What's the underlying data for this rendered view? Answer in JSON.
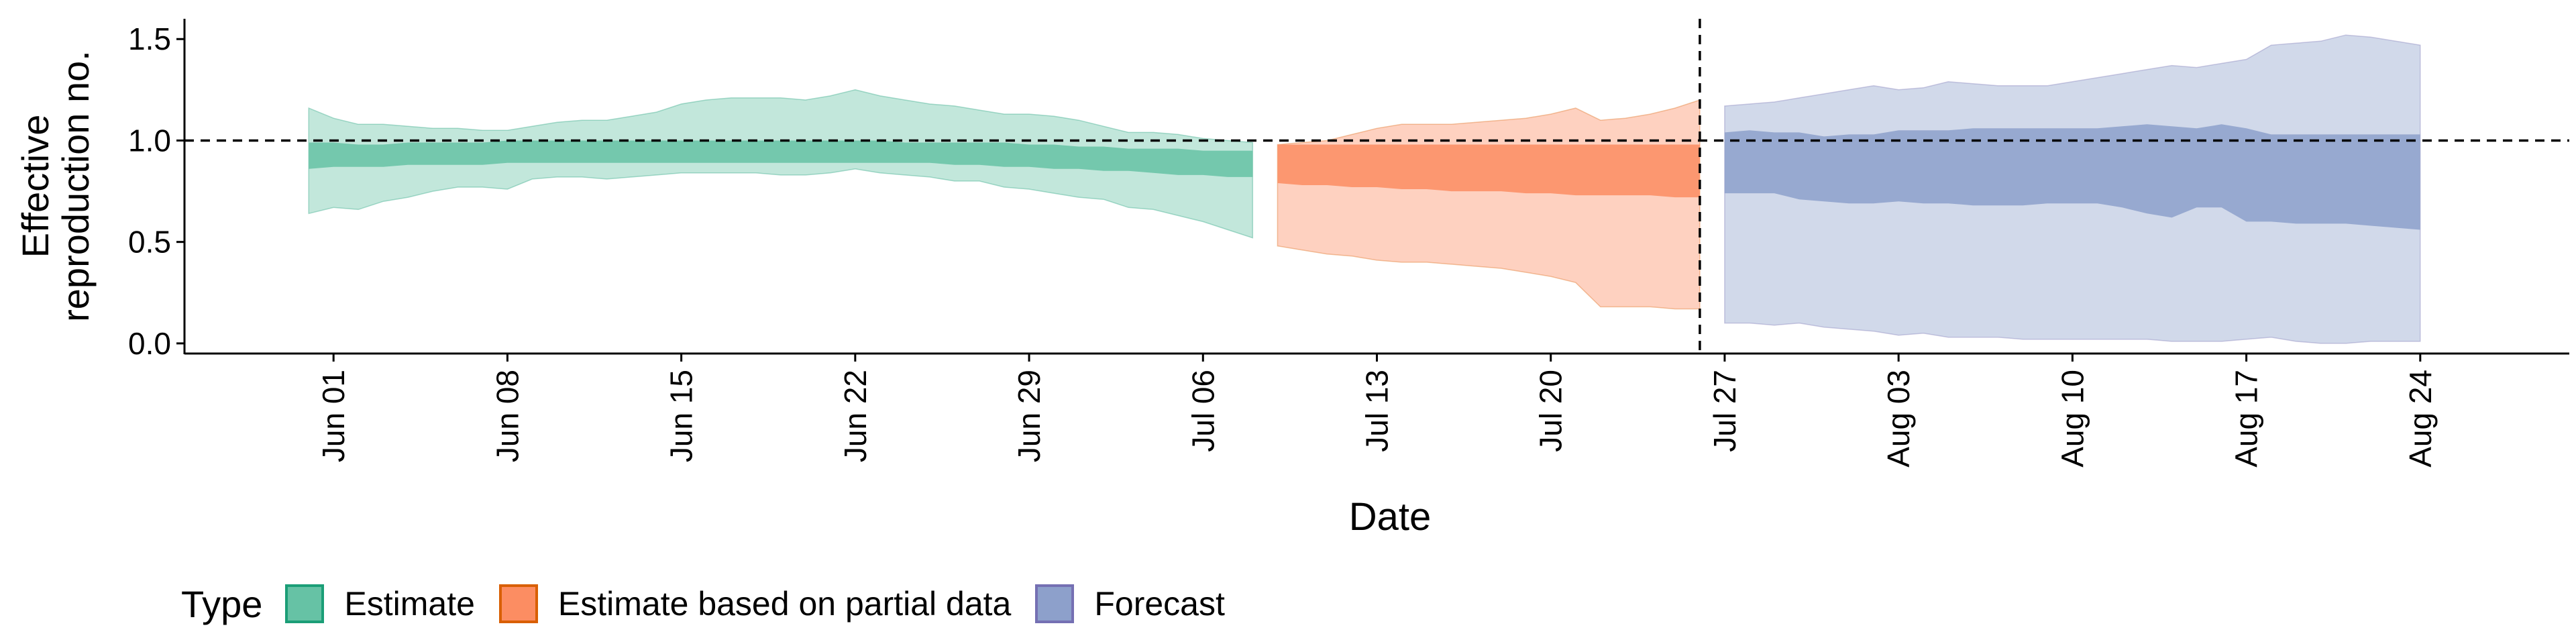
{
  "chart_data": {
    "type": "area",
    "xlabel": "Date",
    "ylabel_lines": [
      "Effective",
      "reproduction no."
    ],
    "ylim": [
      -0.05,
      1.6
    ],
    "xlim": [
      "2020-05-26",
      "2020-08-30"
    ],
    "y_ticks": [
      {
        "value": 0.0,
        "label": "0.0"
      },
      {
        "value": 0.5,
        "label": "0.5"
      },
      {
        "value": 1.0,
        "label": "1.0"
      },
      {
        "value": 1.5,
        "label": "1.5"
      }
    ],
    "x_ticks": [
      {
        "date": "2020-06-01",
        "label": "Jun 01"
      },
      {
        "date": "2020-06-08",
        "label": "Jun 08"
      },
      {
        "date": "2020-06-15",
        "label": "Jun 15"
      },
      {
        "date": "2020-06-22",
        "label": "Jun 22"
      },
      {
        "date": "2020-06-29",
        "label": "Jun 29"
      },
      {
        "date": "2020-07-06",
        "label": "Jul 06"
      },
      {
        "date": "2020-07-13",
        "label": "Jul 13"
      },
      {
        "date": "2020-07-20",
        "label": "Jul 20"
      },
      {
        "date": "2020-07-27",
        "label": "Jul 27"
      },
      {
        "date": "2020-08-03",
        "label": "Aug 03"
      },
      {
        "date": "2020-08-10",
        "label": "Aug 10"
      },
      {
        "date": "2020-08-17",
        "label": "Aug 17"
      },
      {
        "date": "2020-08-24",
        "label": "Aug 24"
      }
    ],
    "hline": 1.0,
    "vline": "2020-07-26",
    "legend": {
      "title": "Type",
      "position": "bottom-left"
    },
    "series": [
      {
        "name": "Estimate",
        "fill_color": "#66c2a5",
        "line_color": "#1b9e77",
        "x": [
          "2020-05-31",
          "2020-06-01",
          "2020-06-02",
          "2020-06-03",
          "2020-06-04",
          "2020-06-05",
          "2020-06-06",
          "2020-06-07",
          "2020-06-08",
          "2020-06-09",
          "2020-06-10",
          "2020-06-11",
          "2020-06-12",
          "2020-06-13",
          "2020-06-14",
          "2020-06-15",
          "2020-06-16",
          "2020-06-17",
          "2020-06-18",
          "2020-06-19",
          "2020-06-20",
          "2020-06-21",
          "2020-06-22",
          "2020-06-23",
          "2020-06-24",
          "2020-06-25",
          "2020-06-26",
          "2020-06-27",
          "2020-06-28",
          "2020-06-29",
          "2020-06-30",
          "2020-07-01",
          "2020-07-02",
          "2020-07-03",
          "2020-07-04",
          "2020-07-05",
          "2020-07-06",
          "2020-07-07",
          "2020-07-08"
        ],
        "lower90": [
          0.64,
          0.67,
          0.66,
          0.7,
          0.72,
          0.75,
          0.77,
          0.77,
          0.76,
          0.81,
          0.82,
          0.82,
          0.81,
          0.82,
          0.83,
          0.84,
          0.84,
          0.84,
          0.84,
          0.83,
          0.83,
          0.84,
          0.86,
          0.84,
          0.83,
          0.82,
          0.8,
          0.8,
          0.77,
          0.76,
          0.74,
          0.72,
          0.71,
          0.67,
          0.66,
          0.63,
          0.6,
          0.56,
          0.52
        ],
        "lower50": [
          0.86,
          0.87,
          0.87,
          0.87,
          0.88,
          0.88,
          0.88,
          0.88,
          0.89,
          0.89,
          0.89,
          0.89,
          0.89,
          0.89,
          0.89,
          0.89,
          0.89,
          0.89,
          0.89,
          0.89,
          0.89,
          0.89,
          0.89,
          0.89,
          0.89,
          0.89,
          0.88,
          0.88,
          0.87,
          0.87,
          0.86,
          0.86,
          0.85,
          0.85,
          0.84,
          0.83,
          0.83,
          0.82,
          0.82
        ],
        "upper50": [
          0.99,
          0.99,
          0.98,
          0.98,
          0.99,
          0.99,
          0.99,
          0.99,
          1.0,
          1.0,
          1.0,
          1.0,
          1.0,
          1.0,
          1.0,
          1.0,
          1.0,
          1.0,
          1.0,
          1.0,
          1.0,
          1.0,
          1.0,
          1.0,
          0.99,
          0.99,
          0.99,
          0.99,
          0.99,
          0.98,
          0.98,
          0.97,
          0.97,
          0.96,
          0.96,
          0.96,
          0.95,
          0.95,
          0.95
        ],
        "upper90": [
          1.16,
          1.11,
          1.08,
          1.08,
          1.07,
          1.06,
          1.06,
          1.05,
          1.05,
          1.07,
          1.09,
          1.1,
          1.1,
          1.12,
          1.14,
          1.18,
          1.2,
          1.21,
          1.21,
          1.21,
          1.2,
          1.22,
          1.25,
          1.22,
          1.2,
          1.18,
          1.17,
          1.15,
          1.13,
          1.13,
          1.12,
          1.1,
          1.07,
          1.04,
          1.04,
          1.03,
          1.01,
          1.0,
          0.99
        ]
      },
      {
        "name": "Estimate based on partial data",
        "fill_color": "#fc8d62",
        "line_color": "#d95f02",
        "x": [
          "2020-07-09",
          "2020-07-10",
          "2020-07-11",
          "2020-07-12",
          "2020-07-13",
          "2020-07-14",
          "2020-07-15",
          "2020-07-16",
          "2020-07-17",
          "2020-07-18",
          "2020-07-19",
          "2020-07-20",
          "2020-07-21",
          "2020-07-22",
          "2020-07-23",
          "2020-07-24",
          "2020-07-25",
          "2020-07-26"
        ],
        "lower90": [
          0.48,
          0.46,
          0.44,
          0.43,
          0.41,
          0.4,
          0.4,
          0.39,
          0.38,
          0.37,
          0.35,
          0.33,
          0.3,
          0.18,
          0.18,
          0.18,
          0.17,
          0.17
        ],
        "lower50": [
          0.79,
          0.78,
          0.78,
          0.77,
          0.77,
          0.76,
          0.76,
          0.75,
          0.75,
          0.75,
          0.74,
          0.74,
          0.73,
          0.73,
          0.73,
          0.73,
          0.72,
          0.72
        ],
        "upper50": [
          0.98,
          0.98,
          0.98,
          0.98,
          0.98,
          0.98,
          0.98,
          0.98,
          0.98,
          0.98,
          0.98,
          0.98,
          0.98,
          0.98,
          0.98,
          0.98,
          0.98,
          0.98
        ],
        "upper90": [
          0.98,
          0.99,
          1.0,
          1.03,
          1.06,
          1.08,
          1.08,
          1.08,
          1.09,
          1.1,
          1.11,
          1.13,
          1.16,
          1.1,
          1.11,
          1.13,
          1.16,
          1.2
        ]
      },
      {
        "name": "Forecast",
        "fill_color": "#8da0cb",
        "line_color": "#7570b3",
        "x": [
          "2020-07-27",
          "2020-07-28",
          "2020-07-29",
          "2020-07-30",
          "2020-07-31",
          "2020-08-01",
          "2020-08-02",
          "2020-08-03",
          "2020-08-04",
          "2020-08-05",
          "2020-08-06",
          "2020-08-07",
          "2020-08-08",
          "2020-08-09",
          "2020-08-10",
          "2020-08-11",
          "2020-08-12",
          "2020-08-13",
          "2020-08-14",
          "2020-08-15",
          "2020-08-16",
          "2020-08-17",
          "2020-08-18",
          "2020-08-19",
          "2020-08-20",
          "2020-08-21",
          "2020-08-22",
          "2020-08-23",
          "2020-08-24"
        ],
        "lower90": [
          0.1,
          0.1,
          0.09,
          0.1,
          0.08,
          0.07,
          0.06,
          0.04,
          0.05,
          0.03,
          0.03,
          0.03,
          0.02,
          0.02,
          0.02,
          0.02,
          0.02,
          0.02,
          0.01,
          0.01,
          0.01,
          0.02,
          0.03,
          0.01,
          0.0,
          0.0,
          0.01,
          0.01,
          0.01
        ],
        "lower50": [
          0.74,
          0.74,
          0.74,
          0.71,
          0.7,
          0.69,
          0.69,
          0.7,
          0.69,
          0.69,
          0.68,
          0.68,
          0.68,
          0.69,
          0.69,
          0.69,
          0.67,
          0.64,
          0.62,
          0.67,
          0.67,
          0.6,
          0.6,
          0.59,
          0.59,
          0.59,
          0.58,
          0.57,
          0.56
        ],
        "upper50": [
          1.04,
          1.05,
          1.04,
          1.04,
          1.02,
          1.03,
          1.03,
          1.05,
          1.05,
          1.05,
          1.06,
          1.06,
          1.06,
          1.06,
          1.06,
          1.06,
          1.07,
          1.08,
          1.07,
          1.06,
          1.08,
          1.06,
          1.03,
          1.03,
          1.03,
          1.03,
          1.03,
          1.03,
          1.03
        ],
        "upper90": [
          1.17,
          1.18,
          1.19,
          1.21,
          1.23,
          1.25,
          1.27,
          1.25,
          1.26,
          1.29,
          1.28,
          1.27,
          1.27,
          1.27,
          1.29,
          1.31,
          1.33,
          1.35,
          1.37,
          1.36,
          1.38,
          1.4,
          1.47,
          1.48,
          1.49,
          1.52,
          1.51,
          1.49,
          1.47
        ]
      }
    ]
  }
}
